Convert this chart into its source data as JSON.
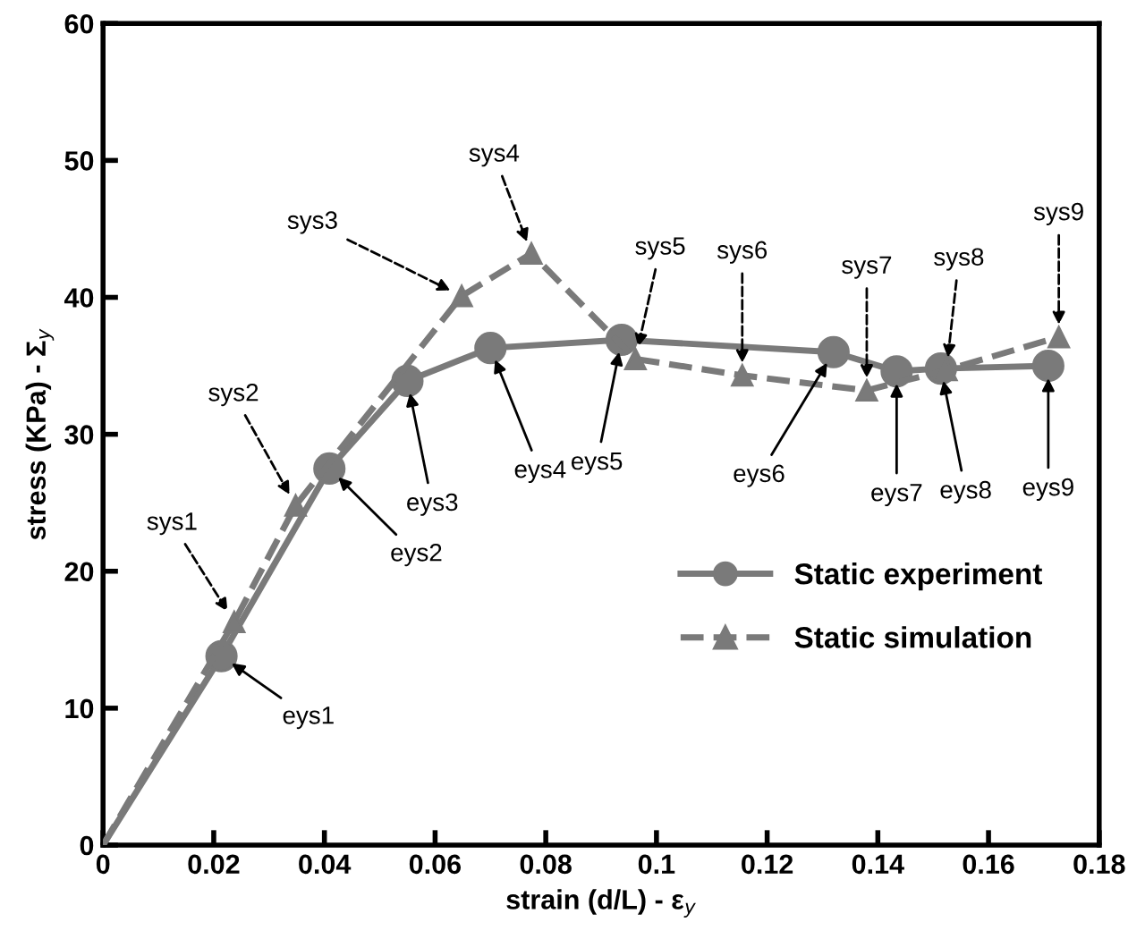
{
  "chart_data": {
    "type": "line",
    "xlabel": "strain (d/L) - ε$_{y}$",
    "ylabel": "stress (KPa) - Σ$_{y}$",
    "xlim": [
      0,
      0.18
    ],
    "xticks": [
      0,
      0.02,
      0.04,
      0.06,
      0.08,
      {
        "value": 0.1,
        "label": "0.1"
      },
      0.12,
      0.14,
      0.16,
      0.18
    ],
    "ylim": [
      0,
      60
    ],
    "yticks": [
      0,
      10,
      20,
      30,
      40,
      50,
      60
    ],
    "grid": false,
    "legend": "bottom right",
    "series": [
      {
        "name": "Static experiment",
        "color": "#7a7a7a",
        "marker": "circle",
        "line_style": "solid",
        "x": [
          0,
          0.0214,
          0.0409,
          0.055,
          0.07,
          0.0937,
          0.132,
          0.1434,
          0.1514,
          0.1708
        ],
        "values": [
          0,
          13.8,
          27.5,
          33.9,
          36.3,
          36.9,
          36.0,
          34.6,
          34.8,
          35.0
        ]
      },
      {
        "name": "Static simulation",
        "color": "#7a7a7a",
        "marker": "triangle",
        "line_style": "dashed",
        "x": [
          0,
          0.0237,
          0.0348,
          0.0648,
          0.0774,
          0.0962,
          0.1155,
          0.138,
          0.1524,
          0.1727
        ],
        "values": [
          0,
          16.3,
          24.8,
          40.1,
          43.2,
          35.5,
          34.3,
          33.2,
          34.7,
          37.1
        ]
      }
    ],
    "annotations": [
      {
        "text": "eys1",
        "x": 0.0214,
        "y": 13.8
      },
      {
        "text": "eys2",
        "x": 0.0409,
        "y": 27.5
      },
      {
        "text": "eys3",
        "x": 0.055,
        "y": 33.9
      },
      {
        "text": "eys4",
        "x": 0.07,
        "y": 36.3
      },
      {
        "text": "eys5",
        "x": 0.0937,
        "y": 36.9
      },
      {
        "text": "eys6",
        "x": 0.132,
        "y": 36.0
      },
      {
        "text": "eys7",
        "x": 0.1434,
        "y": 34.6
      },
      {
        "text": "eys8",
        "x": 0.1514,
        "y": 34.8
      },
      {
        "text": "eys9",
        "x": 0.1708,
        "y": 35.0
      },
      {
        "text": "sys1",
        "x": 0.0237,
        "y": 16.3
      },
      {
        "text": "sys2",
        "x": 0.0348,
        "y": 24.8
      },
      {
        "text": "sys3",
        "x": 0.0648,
        "y": 40.1
      },
      {
        "text": "sys4",
        "x": 0.0774,
        "y": 43.2
      },
      {
        "text": "sys5",
        "x": 0.0962,
        "y": 35.5
      },
      {
        "text": "sys6",
        "x": 0.1155,
        "y": 34.3
      },
      {
        "text": "sys7",
        "x": 0.138,
        "y": 33.2
      },
      {
        "text": "sys8",
        "x": 0.1524,
        "y": 34.7
      },
      {
        "text": "sys9",
        "x": 0.1727,
        "y": 37.1
      }
    ]
  }
}
